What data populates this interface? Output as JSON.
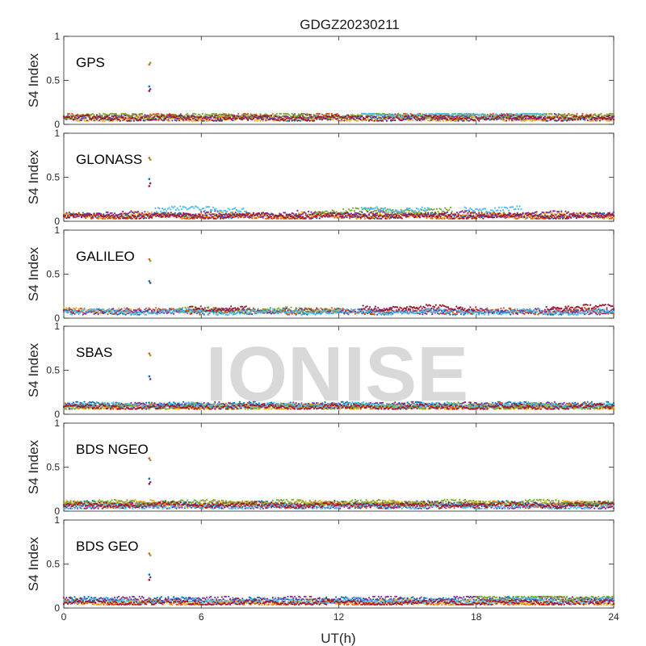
{
  "figure": {
    "title": "GDGZ20230211",
    "xlabel": "UT(h)",
    "ylabel": "S4 Index",
    "watermark": "IONISE",
    "watermark_color": "#e6e6e6"
  },
  "colors": [
    "#0072BD",
    "#D95319",
    "#EDB120",
    "#7E2F8E",
    "#77AC30",
    "#4DBEEE",
    "#A2142F"
  ],
  "chart_data": [
    {
      "type": "scatter",
      "label": "GPS",
      "xlim": [
        0,
        24
      ],
      "ylim": [
        0,
        1
      ],
      "xticks": [
        0,
        6,
        12,
        18,
        24
      ],
      "yticks": [
        0,
        0.5,
        1
      ],
      "ytick_labels": [
        "0",
        "0.5",
        "1"
      ],
      "baseline_range": [
        0.04,
        0.12
      ],
      "spike": {
        "x": 3.75,
        "values": [
          0.68,
          0.7,
          0.43,
          0.4,
          0.38
        ]
      },
      "series": [
        {
          "segments": [
            [
              0,
              24
            ]
          ],
          "level": 0.07
        },
        {
          "segments": [
            [
              0,
              12
            ],
            [
              14,
              24
            ]
          ],
          "level": 0.09
        },
        {
          "segments": [
            [
              0,
              24
            ]
          ],
          "level": 0.06
        },
        {
          "segments": [
            [
              0,
              24
            ]
          ],
          "level": 0.08
        },
        {
          "segments": [
            [
              0,
              24
            ]
          ],
          "level": 0.1
        },
        {
          "segments": [
            [
              13,
              21
            ]
          ],
          "level": 0.11
        },
        {
          "segments": [
            [
              0,
              24
            ]
          ],
          "level": 0.07
        }
      ]
    },
    {
      "type": "scatter",
      "label": "GLONASS",
      "xlim": [
        0,
        24
      ],
      "ylim": [
        0,
        1
      ],
      "xticks": [
        0,
        6,
        12,
        18,
        24
      ],
      "yticks": [
        0,
        0.5,
        1
      ],
      "ytick_labels": [
        "0",
        "0.5",
        "1"
      ],
      "baseline_range": [
        0.03,
        0.17
      ],
      "spike": {
        "x": 3.75,
        "values": [
          0.72,
          0.7,
          0.48,
          0.43,
          0.4
        ]
      },
      "series": [
        {
          "segments": [
            [
              0,
              24
            ]
          ],
          "level": 0.06
        },
        {
          "segments": [
            [
              0,
              24
            ]
          ],
          "level": 0.05
        },
        {
          "segments": [
            [
              0,
              24
            ]
          ],
          "level": 0.07
        },
        {
          "segments": [
            [
              0,
              24
            ]
          ],
          "level": 0.08
        },
        {
          "segments": [
            [
              11,
              17
            ]
          ],
          "level": 0.12
        },
        {
          "segments": [
            [
              4,
              8
            ],
            [
              13,
              16
            ],
            [
              17.5,
              20
            ]
          ],
          "level": 0.14
        },
        {
          "segments": [
            [
              0,
              24
            ]
          ],
          "level": 0.06
        }
      ]
    },
    {
      "type": "scatter",
      "label": "GALILEO",
      "xlim": [
        0,
        24
      ],
      "ylim": [
        0,
        1
      ],
      "xticks": [
        0,
        6,
        12,
        18,
        24
      ],
      "yticks": [
        0,
        0.5,
        1
      ],
      "ytick_labels": [
        "0",
        "0.5",
        "1"
      ],
      "baseline_range": [
        0.04,
        0.16
      ],
      "spike": {
        "x": 3.75,
        "values": [
          0.67,
          0.65,
          0.42,
          0.4
        ]
      },
      "series": [
        {
          "segments": [
            [
              0,
              24
            ]
          ],
          "level": 0.07
        },
        {
          "segments": [
            [
              0,
              24
            ]
          ],
          "level": 0.08
        },
        {
          "segments": [
            [
              0,
              3
            ]
          ],
          "level": 0.09
        },
        {
          "segments": [
            [
              0,
              24
            ]
          ],
          "level": 0.08
        },
        {
          "segments": [
            [
              5,
              12
            ]
          ],
          "level": 0.09
        },
        {
          "segments": [
            [
              0,
              24
            ]
          ],
          "level": 0.07
        },
        {
          "segments": [
            [
              5.5,
              8
            ],
            [
              13,
              18
            ],
            [
              21,
              24
            ]
          ],
          "level": 0.12
        }
      ]
    },
    {
      "type": "scatter",
      "label": "SBAS",
      "xlim": [
        0,
        24
      ],
      "ylim": [
        0,
        1
      ],
      "xticks": [
        0,
        6,
        12,
        18,
        24
      ],
      "yticks": [
        0,
        0.5,
        1
      ],
      "ytick_labels": [
        "0",
        "0.5",
        "1"
      ],
      "baseline_range": [
        0.06,
        0.14
      ],
      "spike": {
        "x": 3.75,
        "values": [
          0.69,
          0.67,
          0.43,
          0.4
        ]
      },
      "series": [
        {
          "segments": [
            [
              0,
              24
            ]
          ],
          "level": 0.11
        },
        {
          "segments": [
            [
              0,
              24
            ]
          ],
          "level": 0.09
        },
        {
          "segments": [
            [
              0,
              24
            ]
          ],
          "level": 0.08
        },
        {
          "segments": [
            [
              0,
              24
            ]
          ],
          "level": 0.1
        },
        {
          "segments": [
            [
              0,
              24
            ]
          ],
          "level": 0.09
        },
        {
          "segments": [
            [
              0,
              24
            ]
          ],
          "level": 0.1
        },
        {
          "segments": [
            [
              0,
              24
            ]
          ],
          "level": 0.08
        }
      ]
    },
    {
      "type": "scatter",
      "label": "BDS NGEO",
      "xlim": [
        0,
        24
      ],
      "ylim": [
        0,
        1
      ],
      "xticks": [
        0,
        6,
        12,
        18,
        24
      ],
      "yticks": [
        0,
        0.5,
        1
      ],
      "ytick_labels": [
        "0",
        "0.5",
        "1"
      ],
      "baseline_range": [
        0.03,
        0.13
      ],
      "spike": {
        "x": 3.75,
        "values": [
          0.6,
          0.58,
          0.37,
          0.33,
          0.31
        ]
      },
      "series": [
        {
          "segments": [
            [
              0,
              24
            ]
          ],
          "level": 0.08
        },
        {
          "segments": [
            [
              0,
              24
            ]
          ],
          "level": 0.07
        },
        {
          "segments": [
            [
              0,
              24
            ]
          ],
          "level": 0.09
        },
        {
          "segments": [
            [
              0,
              24
            ]
          ],
          "level": 0.06
        },
        {
          "segments": [
            [
              0,
              24
            ]
          ],
          "level": 0.1
        },
        {
          "segments": [
            [
              0,
              24
            ]
          ],
          "level": 0.05
        },
        {
          "segments": [
            [
              0,
              24
            ]
          ],
          "level": 0.07
        }
      ]
    },
    {
      "type": "scatter",
      "label": "BDS GEO",
      "xlim": [
        0,
        24
      ],
      "ylim": [
        0,
        1
      ],
      "xticks": [
        0,
        6,
        12,
        18,
        24
      ],
      "yticks": [
        0,
        0.5,
        1
      ],
      "ytick_labels": [
        "0",
        "0.5",
        "1"
      ],
      "baseline_range": [
        0.04,
        0.13
      ],
      "spike": {
        "x": 3.75,
        "values": [
          0.62,
          0.6,
          0.38,
          0.35,
          0.32
        ]
      },
      "series": [
        {
          "segments": [
            [
              0,
              24
            ]
          ],
          "level": 0.09
        },
        {
          "segments": [
            [
              0,
              24
            ]
          ],
          "level": 0.05
        },
        {
          "segments": [
            [
              0,
              24
            ]
          ],
          "level": 0.07
        },
        {
          "segments": [
            [
              0,
              24
            ]
          ],
          "level": 0.1
        },
        {
          "segments": [
            [
              18,
              24
            ]
          ],
          "level": 0.12
        },
        {
          "segments": [
            [
              0,
              24
            ]
          ],
          "level": 0.08
        },
        {
          "segments": [
            [
              0,
              24
            ]
          ],
          "level": 0.06
        }
      ]
    }
  ]
}
